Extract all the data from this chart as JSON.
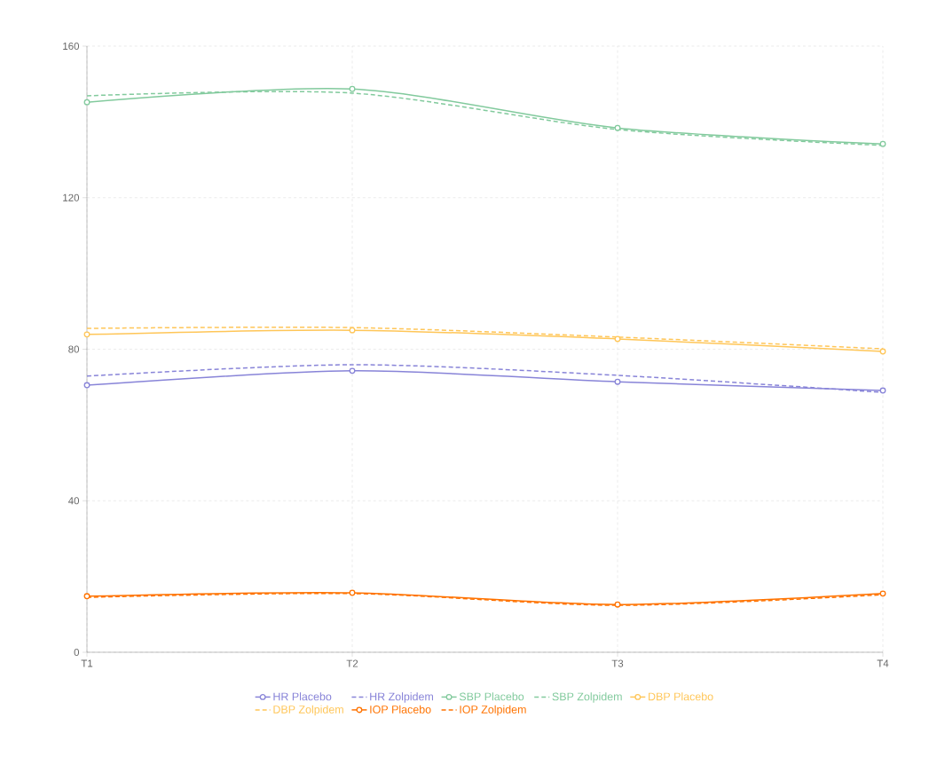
{
  "chart_data": {
    "type": "line",
    "categories": [
      "T1",
      "T2",
      "T3",
      "T4"
    ],
    "series": [
      {
        "name": "HR Placebo",
        "color": "#8884d8",
        "values": [
          70.5,
          74.3,
          71.4,
          69.1
        ],
        "marker": "circle",
        "line_style": "solid"
      },
      {
        "name": "HR Zolpidem",
        "color": "#8884d8",
        "values": [
          72.9,
          75.9,
          73.1,
          68.6
        ],
        "marker": "none",
        "line_style": "dashed"
      },
      {
        "name": "SBP Placebo",
        "color": "#82ca9d",
        "values": [
          145.2,
          148.7,
          138.4,
          134.2
        ],
        "marker": "circle",
        "line_style": "solid"
      },
      {
        "name": "SBP Zolpidem",
        "color": "#82ca9d",
        "values": [
          146.9,
          147.6,
          138.0,
          133.8
        ],
        "marker": "none",
        "line_style": "dashed"
      },
      {
        "name": "DBP Placebo",
        "color": "#ffc658",
        "values": [
          83.9,
          85.0,
          82.7,
          79.4
        ],
        "marker": "circle",
        "line_style": "solid"
      },
      {
        "name": "DBP Zolpidem",
        "color": "#ffc658",
        "values": [
          85.5,
          85.7,
          83.2,
          80.1
        ],
        "marker": "none",
        "line_style": "dashed"
      },
      {
        "name": "IOP Placebo",
        "color": "#ff7300",
        "values": [
          14.8,
          15.7,
          12.6,
          15.5
        ],
        "marker": "circle",
        "line_style": "solid"
      },
      {
        "name": "IOP Zolpidem",
        "color": "#ff7300",
        "values": [
          14.5,
          15.5,
          12.4,
          15.2
        ],
        "marker": "none",
        "line_style": "dashed"
      }
    ],
    "ylim": [
      0,
      160
    ],
    "yticks": [
      0,
      40,
      80,
      120,
      160
    ],
    "grid": true,
    "legend": "bottom"
  }
}
